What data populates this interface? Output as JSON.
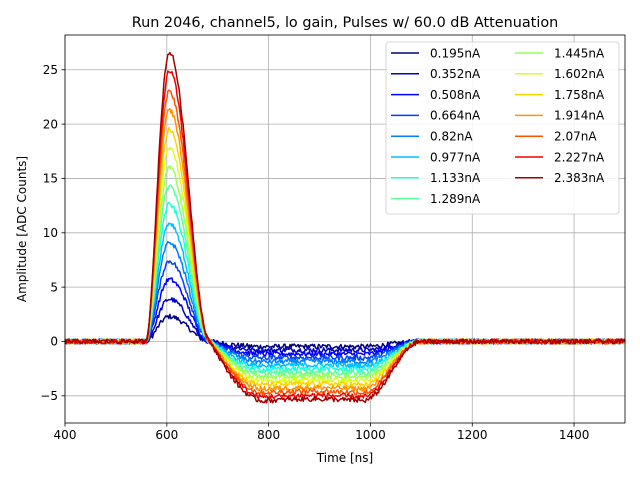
{
  "chart_data": {
    "type": "line",
    "title": "Run 2046, channel5, lo gain, Pulses w/ 60.0 dB Attenuation",
    "xlabel": "Time [ns]",
    "ylabel": "Amplitude [ADC Counts]",
    "xlim": [
      400,
      1500
    ],
    "ylim": [
      -7.5,
      28.2
    ],
    "xticks": [
      400,
      600,
      800,
      1000,
      1200,
      1400
    ],
    "yticks": [
      -5,
      0,
      5,
      10,
      15,
      20,
      25
    ],
    "grid": true,
    "legend_position": "top-right",
    "legend_columns": 2,
    "waveform_shape": {
      "rise_start": 560,
      "peak_time": 605,
      "zero_cross": 685,
      "undershoot_plateau_start": 790,
      "undershoot_plateau_end": 985,
      "recovery_end": 1100,
      "peak_to_undershoot_ratio": 0.205
    },
    "series": [
      {
        "name": "0.195nA",
        "color": "#00007f",
        "peak": 2.3
      },
      {
        "name": "0.352nA",
        "color": "#0000c8",
        "peak": 3.9
      },
      {
        "name": "0.508nA",
        "color": "#0000ff",
        "peak": 5.7
      },
      {
        "name": "0.664nA",
        "color": "#0040ff",
        "peak": 7.4
      },
      {
        "name": "0.82nA",
        "color": "#0080ff",
        "peak": 9.1
      },
      {
        "name": "0.977nA",
        "color": "#00c0ff",
        "peak": 10.9
      },
      {
        "name": "1.133nA",
        "color": "#1cffdb",
        "peak": 12.6
      },
      {
        "name": "1.289nA",
        "color": "#5dff9a",
        "peak": 14.3
      },
      {
        "name": "1.445nA",
        "color": "#9aff5d",
        "peak": 16.0
      },
      {
        "name": "1.602nA",
        "color": "#dbff1c",
        "peak": 17.8
      },
      {
        "name": "1.758nA",
        "color": "#ffd200",
        "peak": 19.5
      },
      {
        "name": "1.914nA",
        "color": "#ff9400",
        "peak": 21.3
      },
      {
        "name": "2.07nA",
        "color": "#ff5500",
        "peak": 23.0
      },
      {
        "name": "2.227nA",
        "color": "#ed0400",
        "peak": 24.9
      },
      {
        "name": "2.383nA",
        "color": "#a50000",
        "peak": 26.6
      }
    ]
  }
}
